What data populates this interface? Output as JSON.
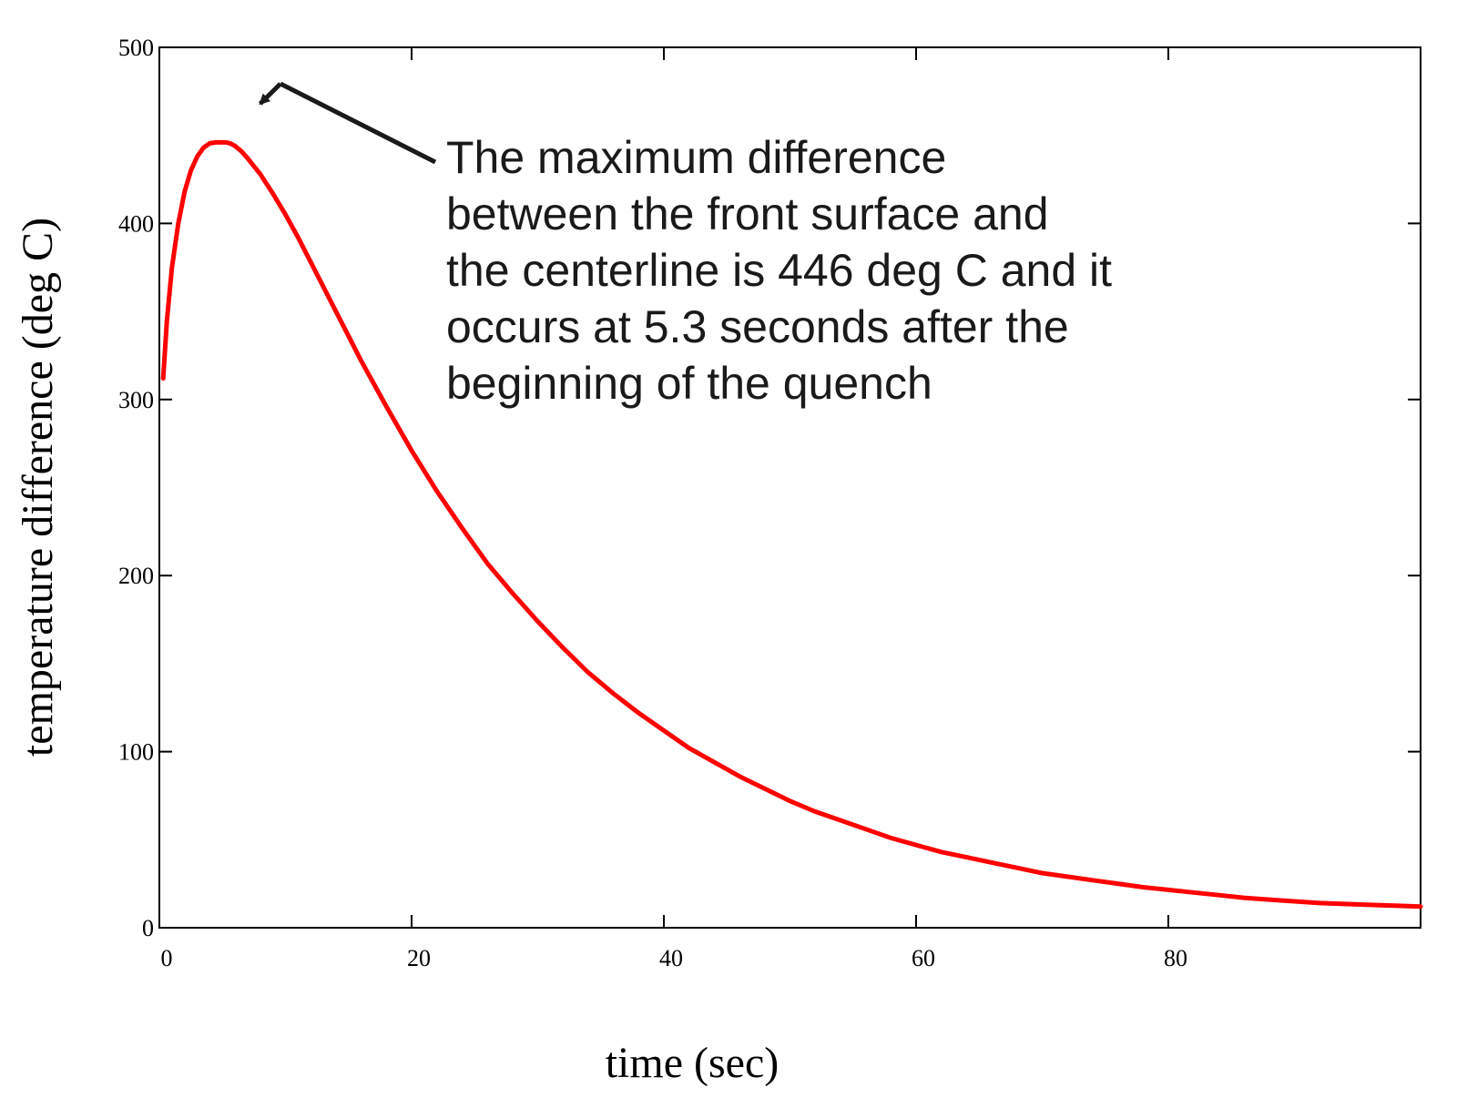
{
  "chart_data": {
    "type": "line",
    "title": "",
    "xlabel": "time (sec)",
    "ylabel": "temperature difference (deg C)",
    "xlim": [
      0,
      100
    ],
    "ylim": [
      0,
      500
    ],
    "x_ticks": [
      0,
      20,
      40,
      60,
      80
    ],
    "y_ticks": [
      0,
      100,
      200,
      300,
      400,
      500
    ],
    "grid": false,
    "legend": "none",
    "series_color": "#ff0000",
    "series": [
      {
        "x": [
          0.3,
          0.6,
          1.0,
          1.5,
          2.0,
          2.5,
          3.0,
          3.5,
          4.0,
          4.5,
          5.0,
          5.3,
          5.6,
          6.0,
          6.5,
          7.0,
          8.0,
          9.0,
          10,
          11,
          12,
          13,
          14,
          15,
          16,
          18,
          20,
          22,
          24,
          26,
          28,
          30,
          32,
          34,
          36,
          38,
          40,
          42,
          44,
          46,
          48,
          50,
          52,
          54,
          56,
          58,
          60,
          62,
          64,
          66,
          68,
          70,
          72,
          74,
          76,
          78,
          80,
          82,
          84,
          86,
          88,
          90,
          92,
          94,
          96,
          98,
          100
        ],
        "y": [
          312,
          345,
          375,
          400,
          418,
          430,
          438,
          443,
          445.5,
          446,
          446,
          446,
          445.5,
          444,
          441,
          437,
          428,
          417,
          405,
          392,
          378,
          364,
          350,
          336,
          322,
          296,
          271,
          248,
          227,
          207,
          190,
          174,
          159,
          145,
          133,
          122,
          112,
          102,
          94,
          86,
          79,
          72,
          66,
          61,
          56,
          51,
          47,
          43,
          40,
          37,
          34,
          31,
          29,
          27,
          25,
          23,
          21.5,
          20,
          18.5,
          17,
          16,
          15,
          14,
          13.5,
          13,
          12.5,
          12
        ]
      }
    ],
    "annotation": {
      "lines": [
        "The maximum difference",
        "between the front surface and",
        "the centerline is 446 deg C and it",
        "occurs at 5.3 seconds after the",
        "beginning of the quench"
      ],
      "arrow_target": {
        "x": 8.0,
        "y": 468
      }
    }
  }
}
